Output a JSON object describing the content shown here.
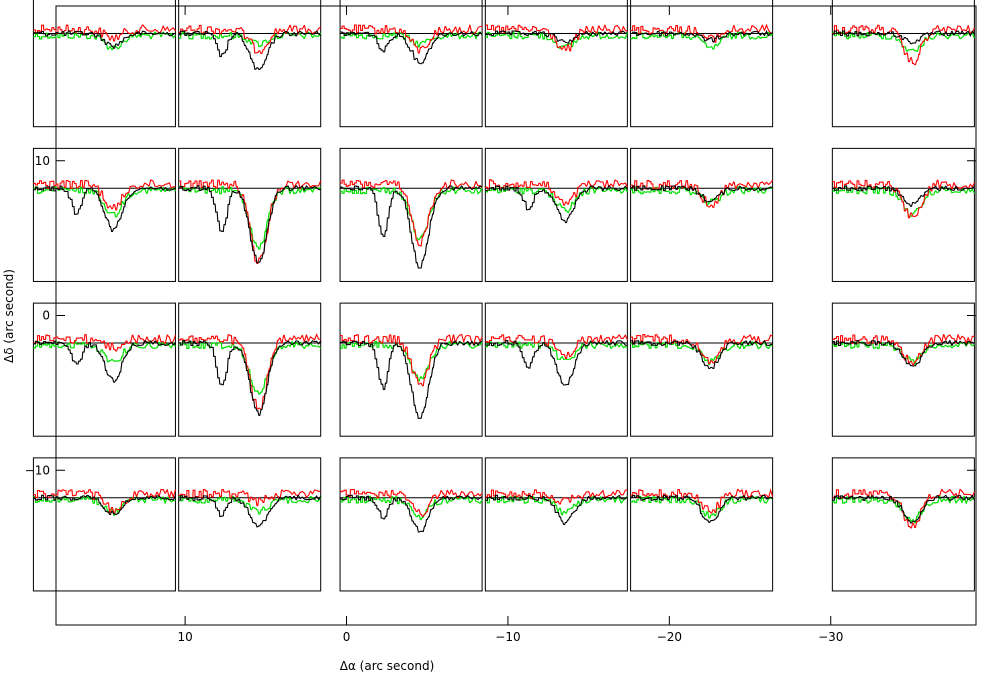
{
  "chart_data": {
    "type": "line",
    "title": "",
    "xlabel": "Δα (arc second)",
    "ylabel": "Δδ (arc second)",
    "xlim": [
      18,
      -39
    ],
    "ylim": [
      -20,
      20
    ],
    "x_ticks": [
      {
        "value": 10,
        "label": "10"
      },
      {
        "value": 0,
        "label": "0"
      },
      {
        "value": -10,
        "label": "−10"
      },
      {
        "value": -20,
        "label": "−20"
      },
      {
        "value": -30,
        "label": "−30"
      }
    ],
    "y_ticks": [
      {
        "value": 10,
        "label": "10"
      },
      {
        "value": 0,
        "label": "0"
      },
      {
        "value": -10,
        "label": "−10"
      }
    ],
    "grid": false,
    "colors": {
      "series_black": "#000000",
      "series_red": "#ff0000",
      "series_green": "#00e000",
      "baseline": "#000000",
      "frame": "#000000"
    },
    "panel_grid": {
      "rows": 4,
      "cols": 6,
      "row_centers": [
        16.5,
        6.5,
        -3.5,
        -13.5
      ],
      "col_centers": [
        15,
        6,
        -4,
        -13,
        -22,
        -34.5
      ],
      "panels": [
        [
          {
            "b": 0.15,
            "r": 0.1,
            "g": 0.15
          },
          {
            "b": 0.45,
            "r": 0.25,
            "g": 0.1
          },
          {
            "b": 0.35,
            "r": 0.25,
            "g": 0.1
          },
          {
            "b": 0.1,
            "r": 0.25,
            "g": 0.15
          },
          {
            "b": 0.08,
            "r": 0.12,
            "g": 0.15
          },
          {
            "b": 0.1,
            "r": 0.4,
            "g": 0.2
          }
        ],
        [
          {
            "b": 0.5,
            "r": 0.3,
            "g": 0.3
          },
          {
            "b": 0.9,
            "r": 0.95,
            "g": 0.7
          },
          {
            "b": 0.95,
            "r": 0.7,
            "g": 0.6
          },
          {
            "b": 0.4,
            "r": 0.25,
            "g": 0.25
          },
          {
            "b": 0.15,
            "r": 0.25,
            "g": 0.15
          },
          {
            "b": 0.2,
            "r": 0.4,
            "g": 0.3
          }
        ],
        [
          {
            "b": 0.45,
            "r": 0.1,
            "g": 0.2
          },
          {
            "b": 0.85,
            "r": 0.85,
            "g": 0.6
          },
          {
            "b": 0.9,
            "r": 0.55,
            "g": 0.4
          },
          {
            "b": 0.5,
            "r": 0.2,
            "g": 0.2
          },
          {
            "b": 0.3,
            "r": 0.3,
            "g": 0.2
          },
          {
            "b": 0.3,
            "r": 0.3,
            "g": 0.2
          }
        ],
        [
          {
            "b": 0.2,
            "r": 0.2,
            "g": 0.15
          },
          {
            "b": 0.35,
            "r": 0.1,
            "g": 0.15
          },
          {
            "b": 0.4,
            "r": 0.25,
            "g": 0.2
          },
          {
            "b": 0.3,
            "r": 0.1,
            "g": 0.15
          },
          {
            "b": 0.3,
            "r": 0.2,
            "g": 0.2
          },
          {
            "b": 0.3,
            "r": 0.4,
            "g": 0.25
          }
        ]
      ]
    }
  }
}
